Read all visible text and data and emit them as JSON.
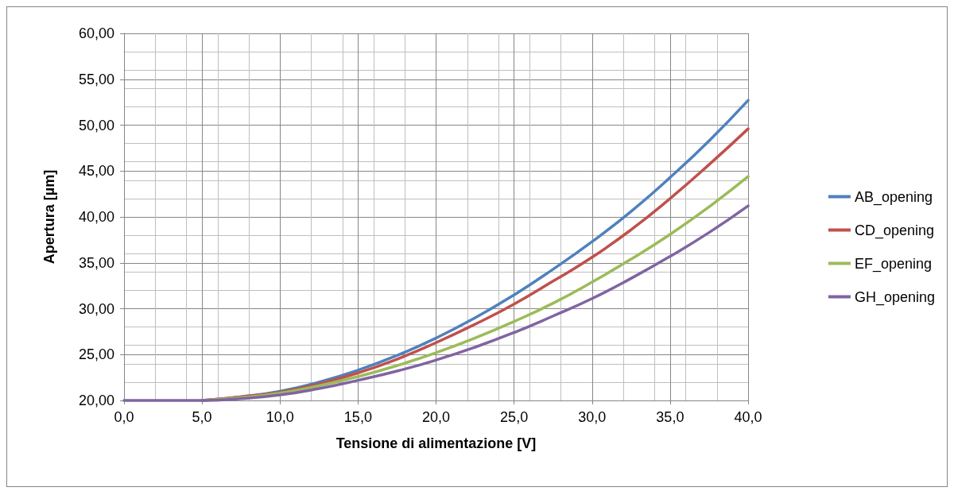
{
  "chart_data": {
    "type": "line",
    "xlabel": "Tensione di alimentazione [V]",
    "ylabel": "Apertura [µm]",
    "x": [
      0,
      2.5,
      5,
      7.5,
      10,
      12.5,
      15,
      17.5,
      20,
      22.5,
      25,
      27.5,
      30,
      32.5,
      35,
      37.5,
      40
    ],
    "series": [
      {
        "name": "AB_opening",
        "color": "#4f81bd",
        "values": [
          null,
          null,
          20.0,
          20.4,
          21.0,
          22.0,
          23.3,
          24.9,
          26.8,
          29.0,
          31.5,
          34.3,
          37.3,
          40.6,
          44.3,
          48.3,
          52.7
        ]
      },
      {
        "name": "CD_opening",
        "color": "#c0504d",
        "values": [
          null,
          null,
          20.0,
          20.4,
          20.9,
          21.8,
          23.0,
          24.5,
          26.3,
          28.3,
          30.5,
          33.0,
          35.6,
          38.6,
          42.0,
          45.7,
          49.6
        ]
      },
      {
        "name": "EF_opening",
        "color": "#9bbb59",
        "values": [
          null,
          null,
          20.0,
          20.3,
          20.8,
          21.6,
          22.6,
          23.8,
          25.2,
          26.8,
          28.6,
          30.6,
          32.9,
          35.4,
          38.1,
          41.1,
          44.4
        ]
      },
      {
        "name": "GH_opening",
        "color": "#8064a2",
        "values": [
          20.0,
          20.0,
          20.0,
          20.2,
          20.6,
          21.3,
          22.2,
          23.2,
          24.4,
          25.8,
          27.4,
          29.2,
          31.1,
          33.3,
          35.7,
          38.3,
          41.2
        ]
      }
    ],
    "xlim": [
      0,
      40
    ],
    "ylim": [
      20,
      60
    ],
    "xticks": [
      {
        "value": 0,
        "label": "0,0"
      },
      {
        "value": 5,
        "label": "5,0"
      },
      {
        "value": 10,
        "label": "10,0"
      },
      {
        "value": 15,
        "label": "15,0"
      },
      {
        "value": 20,
        "label": "20,0"
      },
      {
        "value": 25,
        "label": "25,0"
      },
      {
        "value": 30,
        "label": "30,0"
      },
      {
        "value": 35,
        "label": "35,0"
      },
      {
        "value": 40,
        "label": "40,0"
      }
    ],
    "yticks": [
      {
        "value": 20,
        "label": "20,00"
      },
      {
        "value": 25,
        "label": "25,00"
      },
      {
        "value": 30,
        "label": "30,00"
      },
      {
        "value": 35,
        "label": "35,00"
      },
      {
        "value": 40,
        "label": "40,00"
      },
      {
        "value": 45,
        "label": "45,00"
      },
      {
        "value": 50,
        "label": "50,00"
      },
      {
        "value": 55,
        "label": "55,00"
      },
      {
        "value": 60,
        "label": "60,00"
      }
    ],
    "grid": true,
    "legend": "right",
    "marker": "none",
    "line_style": "solid"
  }
}
